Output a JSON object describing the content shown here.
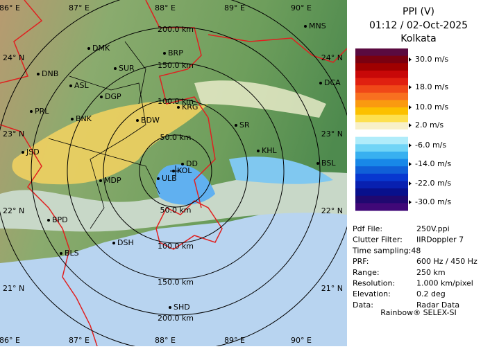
{
  "header": {
    "title": "PPI (V)",
    "datetime": "01:12 / 02-Oct-2025",
    "station": "Kolkata"
  },
  "legend": {
    "labels": [
      "30.0 m/s",
      "18.0 m/s",
      "10.0 m/s",
      "2.0 m/s",
      "-6.0 m/s",
      "-14.0 m/s",
      "-22.0 m/s",
      "-30.0 m/s"
    ],
    "colors": [
      "#5a0a40",
      "#7a0010",
      "#a00000",
      "#c80808",
      "#e02010",
      "#f04818",
      "#f87020",
      "#fa9a10",
      "#fcc000",
      "#fde050",
      "#f8f0c8",
      "#ffffff",
      "#b0ecfa",
      "#70d4f6",
      "#38b0f0",
      "#1888e8",
      "#1060d8",
      "#0838d0",
      "#0820b0",
      "#08108c",
      "#200870",
      "#400878"
    ]
  },
  "info": {
    "rows": [
      [
        "Pdf File:",
        "250V.ppi"
      ],
      [
        "Clutter Filter:",
        "IIRDoppler 7"
      ],
      [
        "Time sampling:48",
        ""
      ],
      [
        "PRF:",
        "600 Hz / 450 Hz"
      ],
      [
        "Range:",
        "250 km"
      ],
      [
        "Resolution:",
        "1.000 km/pixel"
      ],
      [
        "Elevation:",
        "0.2 deg"
      ],
      [
        "Data:",
        "Radar Data"
      ]
    ],
    "footer": "Rainbow® SELEX-SI"
  },
  "map": {
    "longitudes": [
      "86° E",
      "87° E",
      "88° E",
      "89° E",
      "90° E"
    ],
    "latitudes": [
      "24° N",
      "23° N",
      "22° N",
      "21° N"
    ],
    "rings": [
      "50.0 km",
      "100.0 km",
      "150.0 km",
      "200.0 km"
    ],
    "cities": [
      "MNS",
      "DMK",
      "BRP",
      "DNB",
      "SUR",
      "ASL",
      "DCA",
      "DGP",
      "KRG",
      "PRL",
      "BNK",
      "BDW",
      "SR",
      "KHL",
      "JSD",
      "DD",
      "KOL",
      "BSL",
      "MDP",
      "ULB",
      "BPD",
      "DSH",
      "BLS",
      "SHD"
    ]
  }
}
